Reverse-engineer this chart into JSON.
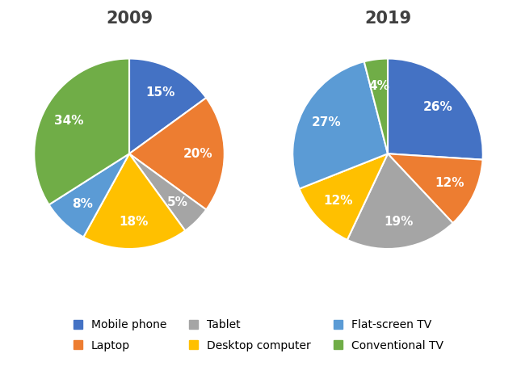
{
  "chart_2009": {
    "title": "2009",
    "labels": [
      "Mobile phone",
      "Laptop",
      "Tablet",
      "Desktop computer",
      "Flat-screen TV",
      "Conventional TV"
    ],
    "values": [
      15,
      20,
      5,
      18,
      8,
      34
    ],
    "colors": [
      "#4472C4",
      "#ED7D31",
      "#A5A5A5",
      "#FFC000",
      "#5B9BD5",
      "#70AD47"
    ],
    "startangle": 90
  },
  "chart_2019": {
    "title": "2019",
    "labels": [
      "Mobile phone",
      "Laptop",
      "Tablet",
      "Desktop computer",
      "Flat-screen TV",
      "Conventional TV"
    ],
    "values": [
      26,
      12,
      19,
      12,
      27,
      4
    ],
    "colors": [
      "#4472C4",
      "#ED7D31",
      "#A5A5A5",
      "#FFC000",
      "#5B9BD5",
      "#70AD47"
    ],
    "startangle": 90
  },
  "legend_labels": [
    "Mobile phone",
    "Laptop",
    "Tablet",
    "Desktop computer",
    "Flat-screen TV",
    "Conventional TV"
  ],
  "legend_colors": [
    "#4472C4",
    "#ED7D31",
    "#A5A5A5",
    "#FFC000",
    "#5B9BD5",
    "#70AD47"
  ],
  "title_fontsize": 15,
  "label_fontsize": 11,
  "legend_fontsize": 10,
  "background_color": "#FFFFFF"
}
